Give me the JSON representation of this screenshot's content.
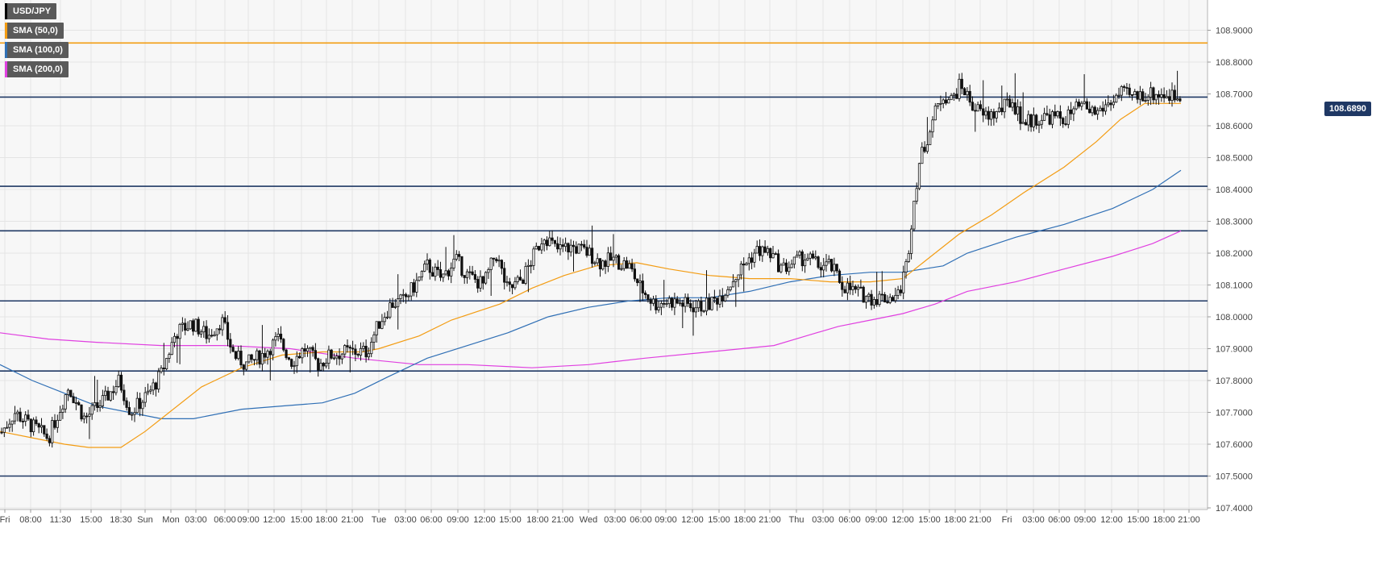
{
  "chart_data": {
    "type": "candlestick",
    "symbol": "USD/JPY",
    "legend": [
      {
        "label": "USD/JPY",
        "color": "#000000"
      },
      {
        "label": "SMA (50,0)",
        "color": "#f39c12"
      },
      {
        "label": "SMA (100,0)",
        "color": "#2f6fb5"
      },
      {
        "label": "SMA (200,0)",
        "color": "#e040e0"
      }
    ],
    "last_price": "108.6890",
    "ylim": [
      107.4,
      109.0
    ],
    "y_ticks": [
      "108.9000",
      "108.8000",
      "108.7000",
      "108.6000",
      "108.5000",
      "108.4000",
      "108.3000",
      "108.2000",
      "108.1000",
      "108.0000",
      "107.9000",
      "107.8000",
      "107.7000",
      "107.6000",
      "107.5000",
      "107.4000"
    ],
    "x_ticks": [
      "Fri",
      "08:00",
      "11:30",
      "15:00",
      "18:30",
      "Sun",
      "Mon",
      "03:00",
      "06:00",
      "09:00",
      "12:00",
      "15:00",
      "18:00",
      "21:00",
      "Tue",
      "03:00",
      "06:00",
      "09:00",
      "12:00",
      "15:00",
      "18:00",
      "21:00",
      "Wed",
      "03:00",
      "06:00",
      "09:00",
      "12:00",
      "15:00",
      "18:00",
      "21:00",
      "Thu",
      "03:00",
      "06:00",
      "09:00",
      "12:00",
      "15:00",
      "18:00",
      "21:00",
      "Fri",
      "03:00",
      "06:00",
      "09:00",
      "12:00",
      "15:00",
      "18:00",
      "21:00"
    ],
    "horizontal_levels": [
      {
        "value": 108.86,
        "color": "#f39c12"
      },
      {
        "value": 108.69,
        "color": "#1f3864"
      },
      {
        "value": 108.41,
        "color": "#1f3864"
      },
      {
        "value": 108.27,
        "color": "#1f3864"
      },
      {
        "value": 108.05,
        "color": "#1f3864"
      },
      {
        "value": 107.83,
        "color": "#1f3864"
      },
      {
        "value": 107.5,
        "color": "#1f3864"
      }
    ],
    "price_path": [
      [
        0,
        107.63
      ],
      [
        18,
        107.7
      ],
      [
        38,
        107.66
      ],
      [
        60,
        107.62
      ],
      [
        85,
        107.78
      ],
      [
        105,
        107.68
      ],
      [
        130,
        107.74
      ],
      [
        148,
        107.8
      ],
      [
        162,
        107.7
      ],
      [
        185,
        107.76
      ],
      [
        200,
        107.82
      ],
      [
        218,
        107.95
      ],
      [
        238,
        107.98
      ],
      [
        258,
        107.94
      ],
      [
        275,
        107.99
      ],
      [
        290,
        107.88
      ],
      [
        305,
        107.85
      ],
      [
        325,
        107.88
      ],
      [
        345,
        107.93
      ],
      [
        362,
        107.86
      ],
      [
        378,
        107.9
      ],
      [
        395,
        107.85
      ],
      [
        410,
        107.88
      ],
      [
        430,
        107.89
      ],
      [
        455,
        107.89
      ],
      [
        470,
        107.98
      ],
      [
        485,
        108.04
      ],
      [
        500,
        108.05
      ],
      [
        515,
        108.1
      ],
      [
        530,
        108.16
      ],
      [
        548,
        108.12
      ],
      [
        565,
        108.18
      ],
      [
        580,
        108.13
      ],
      [
        600,
        108.1
      ],
      [
        615,
        108.2
      ],
      [
        630,
        108.08
      ],
      [
        648,
        108.12
      ],
      [
        660,
        108.18
      ],
      [
        675,
        108.26
      ],
      [
        690,
        108.21
      ],
      [
        710,
        108.22
      ],
      [
        730,
        108.2
      ],
      [
        745,
        108.17
      ],
      [
        760,
        108.18
      ],
      [
        780,
        108.16
      ],
      [
        795,
        108.09
      ],
      [
        812,
        108.04
      ],
      [
        830,
        108.05
      ],
      [
        848,
        108.04
      ],
      [
        865,
        108.03
      ],
      [
        880,
        108.04
      ],
      [
        895,
        108.07
      ],
      [
        910,
        108.12
      ],
      [
        925,
        108.17
      ],
      [
        940,
        108.21
      ],
      [
        955,
        108.2
      ],
      [
        970,
        108.15
      ],
      [
        985,
        108.17
      ],
      [
        1000,
        108.19
      ],
      [
        1015,
        108.16
      ],
      [
        1030,
        108.16
      ],
      [
        1045,
        108.1
      ],
      [
        1060,
        108.08
      ],
      [
        1080,
        108.06
      ],
      [
        1100,
        108.06
      ],
      [
        1115,
        108.07
      ],
      [
        1125,
        108.17
      ],
      [
        1132,
        108.33
      ],
      [
        1140,
        108.48
      ],
      [
        1150,
        108.56
      ],
      [
        1160,
        108.64
      ],
      [
        1170,
        108.7
      ],
      [
        1180,
        108.68
      ],
      [
        1192,
        108.73
      ],
      [
        1205,
        108.67
      ],
      [
        1220,
        108.63
      ],
      [
        1238,
        108.64
      ],
      [
        1255,
        108.68
      ],
      [
        1270,
        108.61
      ],
      [
        1285,
        108.62
      ],
      [
        1300,
        108.63
      ],
      [
        1320,
        108.62
      ],
      [
        1340,
        108.66
      ],
      [
        1360,
        108.64
      ],
      [
        1375,
        108.67
      ],
      [
        1390,
        108.7
      ],
      [
        1405,
        108.69
      ],
      [
        1420,
        108.7
      ],
      [
        1440,
        108.7
      ],
      [
        1462,
        108.69
      ]
    ],
    "sma50_path": [
      [
        0,
        107.64
      ],
      [
        40,
        107.62
      ],
      [
        80,
        107.6
      ],
      [
        110,
        107.59
      ],
      [
        150,
        107.59
      ],
      [
        180,
        107.64
      ],
      [
        210,
        107.7
      ],
      [
        250,
        107.78
      ],
      [
        300,
        107.84
      ],
      [
        350,
        107.88
      ],
      [
        400,
        107.89
      ],
      [
        450,
        107.89
      ],
      [
        470,
        107.9
      ],
      [
        520,
        107.94
      ],
      [
        560,
        107.99
      ],
      [
        620,
        108.04
      ],
      [
        660,
        108.09
      ],
      [
        700,
        108.13
      ],
      [
        740,
        108.16
      ],
      [
        790,
        108.17
      ],
      [
        830,
        108.15
      ],
      [
        880,
        108.13
      ],
      [
        930,
        108.12
      ],
      [
        980,
        108.12
      ],
      [
        1030,
        108.11
      ],
      [
        1080,
        108.11
      ],
      [
        1120,
        108.12
      ],
      [
        1150,
        108.18
      ],
      [
        1190,
        108.26
      ],
      [
        1230,
        108.32
      ],
      [
        1270,
        108.39
      ],
      [
        1320,
        108.47
      ],
      [
        1360,
        108.55
      ],
      [
        1390,
        108.62
      ],
      [
        1420,
        108.67
      ],
      [
        1465,
        108.67
      ]
    ],
    "sma100_path": [
      [
        0,
        107.85
      ],
      [
        40,
        107.8
      ],
      [
        80,
        107.76
      ],
      [
        120,
        107.72
      ],
      [
        160,
        107.7
      ],
      [
        200,
        107.68
      ],
      [
        240,
        107.68
      ],
      [
        300,
        107.71
      ],
      [
        350,
        107.72
      ],
      [
        400,
        107.73
      ],
      [
        440,
        107.76
      ],
      [
        480,
        107.81
      ],
      [
        530,
        107.87
      ],
      [
        580,
        107.91
      ],
      [
        630,
        107.95
      ],
      [
        680,
        108.0
      ],
      [
        730,
        108.03
      ],
      [
        780,
        108.05
      ],
      [
        830,
        108.06
      ],
      [
        880,
        108.06
      ],
      [
        930,
        108.08
      ],
      [
        980,
        108.11
      ],
      [
        1030,
        108.13
      ],
      [
        1080,
        108.14
      ],
      [
        1120,
        108.14
      ],
      [
        1170,
        108.16
      ],
      [
        1200,
        108.2
      ],
      [
        1260,
        108.25
      ],
      [
        1320,
        108.29
      ],
      [
        1380,
        108.34
      ],
      [
        1430,
        108.4
      ],
      [
        1465,
        108.46
      ]
    ],
    "sma200_path": [
      [
        0,
        107.95
      ],
      [
        60,
        107.93
      ],
      [
        120,
        107.92
      ],
      [
        200,
        107.91
      ],
      [
        280,
        107.91
      ],
      [
        360,
        107.9
      ],
      [
        440,
        107.87
      ],
      [
        520,
        107.85
      ],
      [
        580,
        107.85
      ],
      [
        660,
        107.84
      ],
      [
        730,
        107.85
      ],
      [
        800,
        107.87
      ],
      [
        880,
        107.89
      ],
      [
        960,
        107.91
      ],
      [
        1000,
        107.94
      ],
      [
        1040,
        107.97
      ],
      [
        1080,
        107.99
      ],
      [
        1120,
        108.01
      ],
      [
        1160,
        108.04
      ],
      [
        1200,
        108.08
      ],
      [
        1260,
        108.11
      ],
      [
        1320,
        108.15
      ],
      [
        1380,
        108.19
      ],
      [
        1430,
        108.23
      ],
      [
        1465,
        108.27
      ]
    ]
  }
}
